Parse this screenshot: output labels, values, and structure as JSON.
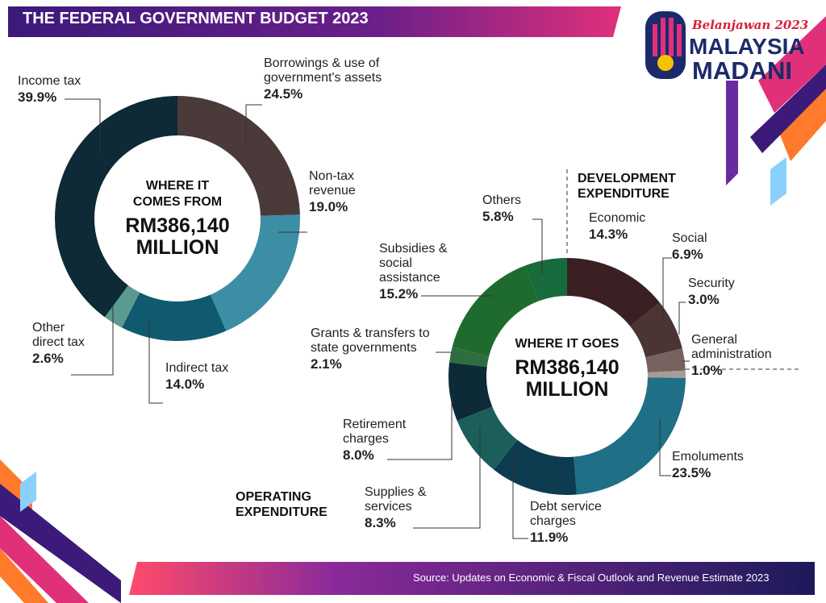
{
  "title": "THE FEDERAL GOVERNMENT BUDGET 2023",
  "source": "Source:  Updates on Economic & Fiscal Outlook and Revenue Estimate 2023",
  "logo": {
    "tagline": "Belanjawan 2023",
    "line1": "MALAYSIA",
    "line2": "MADANI"
  },
  "chart_data": [
    {
      "type": "donut",
      "center_title": [
        "WHERE IT",
        "COMES FROM"
      ],
      "center_amount": [
        "RM386,140",
        "MILLION"
      ],
      "categories": [
        "Borrowings & use of government's assets",
        "Non-tax revenue",
        "Indirect tax",
        "Other direct tax",
        "Income tax"
      ],
      "values": [
        24.5,
        19.0,
        14.0,
        2.6,
        39.9
      ],
      "value_labels": [
        "24.5%",
        "19.0%",
        "14.0%",
        "2.6%",
        "39.9%"
      ],
      "colors": [
        "#4b3a3a",
        "#3c8ea4",
        "#0f5a6e",
        "#5b9a90",
        "#0d2a36"
      ]
    },
    {
      "type": "donut",
      "center_title": [
        "WHERE IT GOES"
      ],
      "center_amount": [
        "RM386,140",
        "MILLION"
      ],
      "annotations": [
        "DEVELOPMENT EXPENDITURE",
        "OPERATING EXPENDITURE"
      ],
      "categories": [
        "Economic",
        "Social",
        "Security",
        "General administration",
        "Emoluments",
        "Debt service charges",
        "Supplies & services",
        "Retirement charges",
        "Grants & transfers to state governments",
        "Subsidies & social assistance",
        "Others"
      ],
      "values": [
        14.3,
        6.9,
        3.0,
        1.0,
        23.5,
        11.9,
        8.3,
        8.0,
        2.1,
        15.2,
        5.8
      ],
      "value_labels": [
        "14.3%",
        "6.9%",
        "3.0%",
        "1.0%",
        "23.5%",
        "11.9%",
        "8.3%",
        "8.0%",
        "2.1%",
        "15.2%",
        "5.8%"
      ],
      "colors": [
        "#3a1f23",
        "#4a3434",
        "#76625f",
        "#a89c96",
        "#1f6f86",
        "#0d3b4f",
        "#1b5e5a",
        "#0c2b36",
        "#2e6e3e",
        "#1f6b2f",
        "#186b3d"
      ]
    }
  ]
}
